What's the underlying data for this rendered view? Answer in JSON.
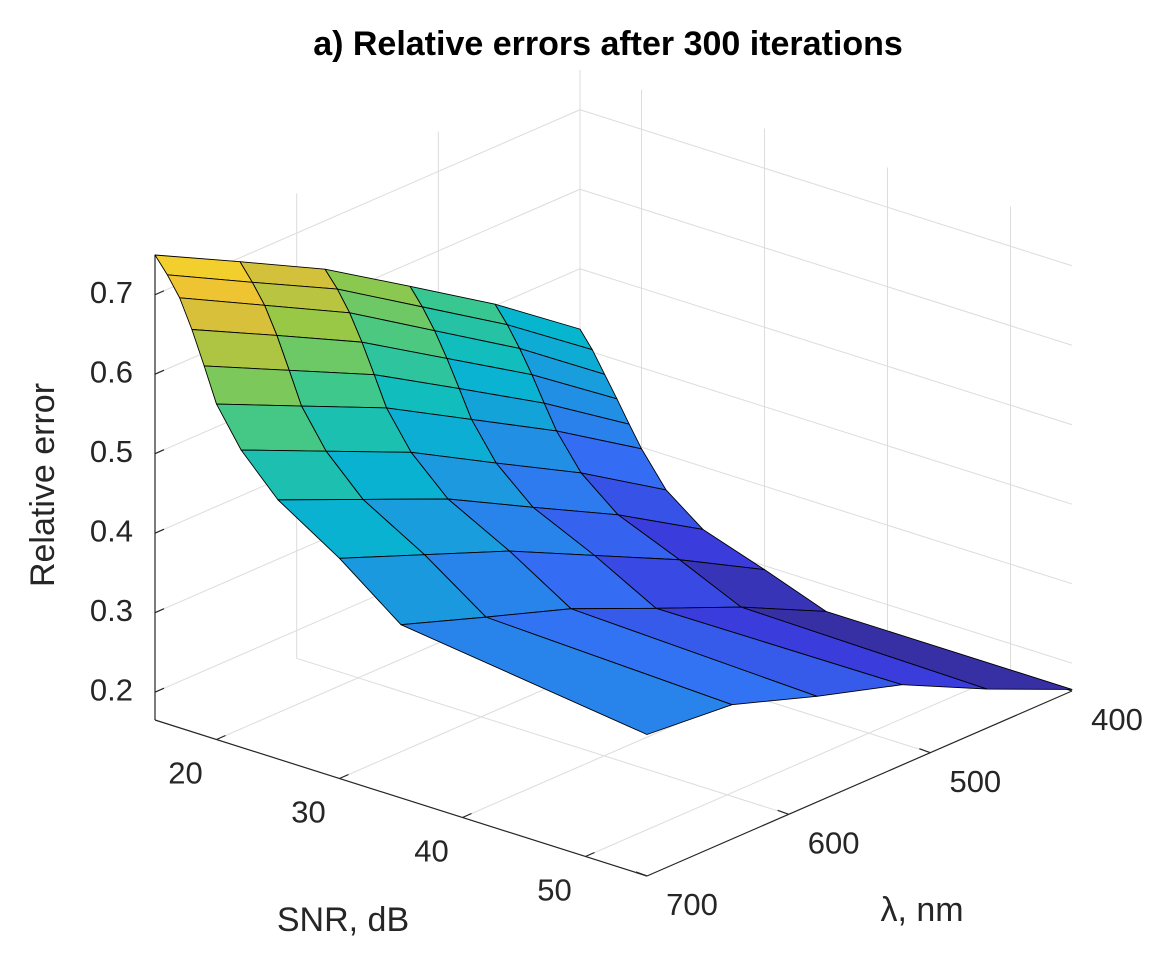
{
  "chart_data": {
    "type": "surface",
    "title": "a) Relative errors after 300 iterations",
    "xlabel": "SNR, dB",
    "ylabel": "λ, nm",
    "zlabel": "Relative error",
    "x": [
      15,
      16,
      17,
      18,
      19,
      20,
      22,
      25,
      30,
      35,
      55
    ],
    "y": [
      700,
      640,
      580,
      520,
      460,
      400
    ],
    "values": [
      [
        0.75,
        0.695,
        0.639,
        0.571,
        0.502,
        0.424
      ],
      [
        0.73,
        0.674,
        0.619,
        0.55,
        0.481,
        0.403
      ],
      [
        0.706,
        0.65,
        0.594,
        0.525,
        0.456,
        0.377
      ],
      [
        0.671,
        0.617,
        0.562,
        0.495,
        0.428,
        0.351
      ],
      [
        0.63,
        0.578,
        0.526,
        0.462,
        0.397,
        0.324
      ],
      [
        0.587,
        0.538,
        0.489,
        0.428,
        0.367,
        0.298
      ],
      [
        0.539,
        0.491,
        0.443,
        0.383,
        0.324,
        0.256
      ],
      [
        0.491,
        0.445,
        0.399,
        0.342,
        0.286,
        0.221
      ],
      [
        0.442,
        0.4,
        0.358,
        0.306,
        0.254,
        0.195
      ],
      [
        0.383,
        0.346,
        0.31,
        0.264,
        0.219,
        0.167
      ],
      [
        0.343,
        0.334,
        0.298,
        0.266,
        0.214,
        0.167
      ]
    ],
    "colormap": "parula",
    "xlim": [
      15,
      55
    ],
    "ylim": [
      400,
      700
    ],
    "zlim": [
      0.165,
      0.75
    ],
    "xticks": [
      20,
      30,
      40,
      50
    ],
    "yticks": [
      400,
      500,
      600,
      700
    ],
    "zticks": [
      0.2,
      0.3,
      0.4,
      0.5,
      0.6,
      0.7
    ],
    "grid": true
  }
}
